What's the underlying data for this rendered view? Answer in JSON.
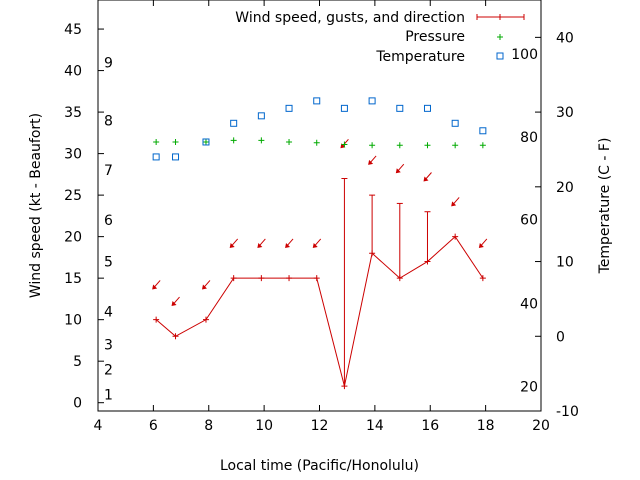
{
  "chart_data": {
    "type": "line",
    "title": "",
    "xlabel": "Local time (Pacific/Honolulu)",
    "ylabel": "Wind speed (kt - Beaufort)",
    "y2label": "Temperature (C - F)",
    "xlim": [
      4,
      20
    ],
    "ylim": [
      -1,
      48.5
    ],
    "y2lim_celsius": [
      -10,
      45
    ],
    "x_ticks": [
      4,
      6,
      8,
      10,
      12,
      14,
      16,
      18,
      20
    ],
    "y_ticks": [
      0,
      5,
      10,
      15,
      20,
      25,
      30,
      35,
      40,
      45
    ],
    "y2_ticks_celsius": [
      -10,
      0,
      10,
      20,
      30,
      40
    ],
    "beaufort_labels": [
      {
        "value": 1,
        "kt": 1
      },
      {
        "value": 2,
        "kt": 4
      },
      {
        "value": 3,
        "kt": 7
      },
      {
        "value": 4,
        "kt": 11
      },
      {
        "value": 5,
        "kt": 17
      },
      {
        "value": 6,
        "kt": 22
      },
      {
        "value": 7,
        "kt": 28
      },
      {
        "value": 8,
        "kt": 34
      },
      {
        "value": 9,
        "kt": 41
      }
    ],
    "fahrenheit_labels": [
      {
        "value": 20,
        "celsius": -6.7
      },
      {
        "value": 40,
        "celsius": 4.4
      },
      {
        "value": 60,
        "celsius": 15.6
      },
      {
        "value": 80,
        "celsius": 26.7
      },
      {
        "value": 100,
        "celsius": 37.8
      }
    ],
    "legend_position": "top-right",
    "series": [
      {
        "name": "Wind speed, gusts, and direction",
        "color": "#cc0000",
        "x": [
          6.1,
          6.8,
          7.9,
          8.9,
          9.9,
          10.9,
          11.9,
          12.9,
          13.9,
          14.9,
          15.9,
          16.9,
          17.9
        ],
        "values": [
          10,
          8,
          10,
          15,
          15,
          15,
          15,
          2,
          18,
          15,
          17,
          20,
          15
        ],
        "gusts": [
          10,
          8,
          10,
          15,
          15,
          15,
          15,
          27,
          25,
          24,
          23,
          20,
          15
        ],
        "arrow_y": [
          14,
          12,
          14,
          19,
          19,
          19,
          19,
          31,
          29,
          28,
          27,
          24,
          19
        ]
      },
      {
        "name": "Pressure",
        "color": "#00aa00",
        "x": [
          6.1,
          6.8,
          7.9,
          8.9,
          9.9,
          10.9,
          11.9,
          12.9,
          13.9,
          14.9,
          15.9,
          16.9,
          17.9
        ],
        "values": [
          31.4,
          31.4,
          31.4,
          31.6,
          31.6,
          31.4,
          31.3,
          31.1,
          31.0,
          31.0,
          31.0,
          31.0,
          31.0
        ]
      },
      {
        "name": "Temperature",
        "color": "#0066cc",
        "x": [
          6.1,
          6.8,
          7.9,
          8.9,
          9.9,
          10.9,
          11.9,
          12.9,
          13.9,
          14.9,
          15.9,
          16.9,
          17.9
        ],
        "values_celsius": [
          24,
          24,
          26,
          28.5,
          29.5,
          30.5,
          31.5,
          30.5,
          31.5,
          30.5,
          30.5,
          28.5,
          27.5
        ]
      }
    ]
  }
}
